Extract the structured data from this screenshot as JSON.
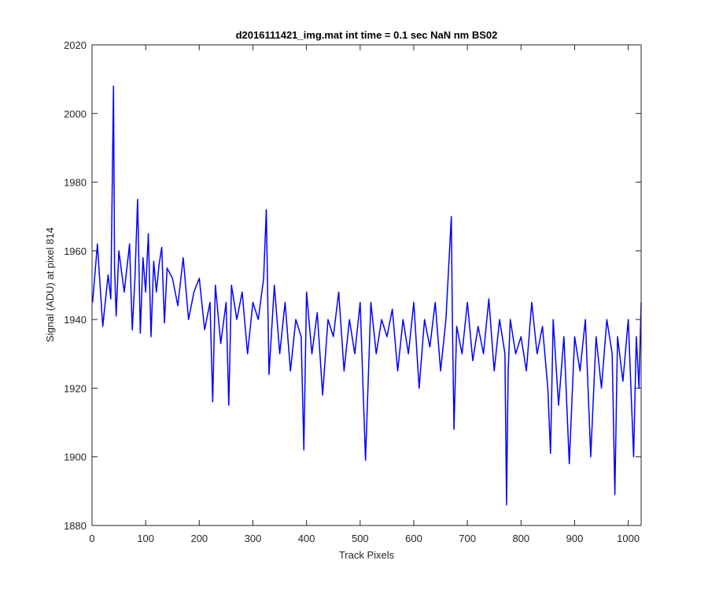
{
  "chart_data": {
    "type": "line",
    "title": "d2016111421_img.mat int time = 0.1 sec  NaN nm BS02",
    "xlabel": "Track Pixels",
    "ylabel": "Signal (ADU) at pixel 814",
    "xlim": [
      0,
      1024
    ],
    "ylim": [
      1880,
      2020
    ],
    "xticks": [
      0,
      100,
      200,
      300,
      400,
      500,
      600,
      700,
      800,
      900,
      1000
    ],
    "yticks": [
      1880,
      1900,
      1920,
      1940,
      1960,
      1980,
      2000,
      2020
    ],
    "grid": false,
    "legend": "none",
    "line_color": "#0000ff",
    "series": [
      {
        "x": [
          1,
          10,
          20,
          30,
          35,
          40,
          42,
          45,
          50,
          60,
          70,
          75,
          80,
          85,
          90,
          95,
          100,
          105,
          110,
          115,
          120,
          125,
          130,
          135,
          140,
          150,
          160,
          170,
          180,
          190,
          200,
          210,
          220,
          225,
          230,
          240,
          250,
          255,
          260,
          270,
          280,
          290,
          300,
          310,
          320,
          325,
          330,
          340,
          350,
          360,
          370,
          380,
          390,
          395,
          400,
          410,
          420,
          430,
          440,
          450,
          460,
          470,
          480,
          490,
          500,
          510,
          520,
          530,
          540,
          550,
          560,
          570,
          580,
          590,
          600,
          610,
          620,
          630,
          640,
          650,
          660,
          670,
          672,
          675,
          680,
          690,
          700,
          710,
          720,
          730,
          740,
          750,
          760,
          770,
          773,
          776,
          780,
          790,
          800,
          810,
          820,
          830,
          840,
          850,
          855,
          860,
          870,
          880,
          890,
          900,
          910,
          920,
          930,
          940,
          950,
          960,
          970,
          975,
          980,
          990,
          1000,
          1010,
          1015,
          1020,
          1024
        ],
        "y": [
          1945,
          1962,
          1938,
          1953,
          1946,
          2008,
          1955,
          1941,
          1960,
          1948,
          1962,
          1937,
          1952,
          1975,
          1936,
          1958,
          1948,
          1965,
          1935,
          1957,
          1948,
          1956,
          1961,
          1939,
          1955,
          1952,
          1944,
          1958,
          1940,
          1948,
          1952,
          1937,
          1945,
          1916,
          1950,
          1933,
          1945,
          1915,
          1950,
          1940,
          1948,
          1930,
          1945,
          1940,
          1952,
          1972,
          1924,
          1950,
          1930,
          1945,
          1925,
          1940,
          1935,
          1902,
          1948,
          1930,
          1942,
          1918,
          1940,
          1935,
          1948,
          1925,
          1940,
          1930,
          1945,
          1899,
          1945,
          1930,
          1940,
          1935,
          1943,
          1925,
          1940,
          1930,
          1945,
          1920,
          1940,
          1932,
          1945,
          1925,
          1940,
          1970,
          1940,
          1908,
          1938,
          1930,
          1945,
          1928,
          1938,
          1930,
          1946,
          1925,
          1940,
          1930,
          1886,
          1925,
          1940,
          1930,
          1935,
          1925,
          1945,
          1930,
          1938,
          1920,
          1901,
          1940,
          1915,
          1935,
          1898,
          1935,
          1925,
          1940,
          1900,
          1935,
          1920,
          1940,
          1930,
          1889,
          1935,
          1922,
          1940,
          1900,
          1935,
          1920,
          1945
        ]
      }
    ]
  }
}
